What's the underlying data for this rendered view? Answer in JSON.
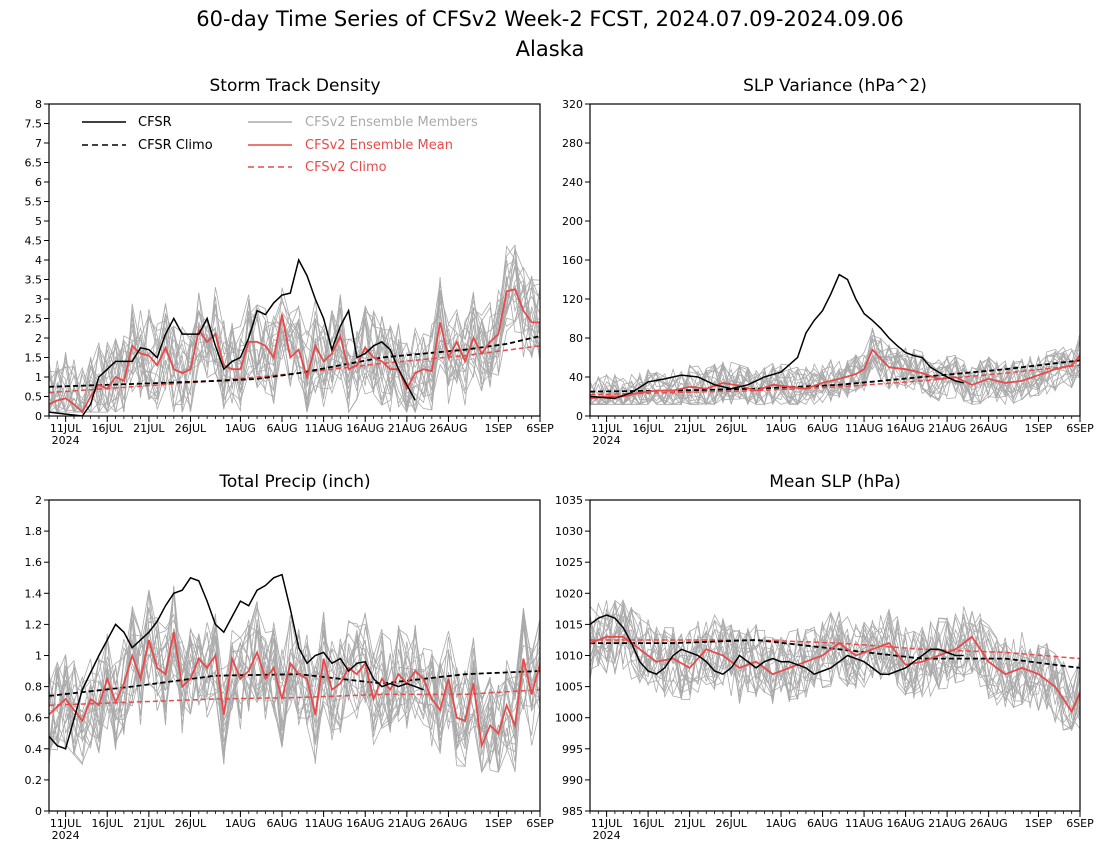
{
  "figure": {
    "title_line1": "60-day Time Series of CFSv2 Week-2 FCST, 2024.07.09-2024.09.06",
    "title_line2": "Alaska"
  },
  "colors": {
    "cfsr": "#000000",
    "cfsr_climo": "#000000",
    "members": "#aaaaaa",
    "ens_mean": "#e84a4a",
    "cfsv2_climo": "#e84a4a"
  },
  "legend": {
    "cfsr": "CFSR",
    "cfsr_climo": "CFSR Climo",
    "members": "CFSv2 Ensemble Members",
    "ens_mean": "CFSv2 Ensemble Mean",
    "cfsv2_climo": "CFSv2 Climo"
  },
  "x_axis": {
    "ticks": [
      "11JUL",
      "16JUL",
      "21JUL",
      "26JUL",
      "1AUG",
      "6AUG",
      "11AUG",
      "16AUG",
      "21AUG",
      "26AUG",
      "1SEP",
      "6SEP"
    ],
    "year_label": "2024"
  },
  "chart_data": [
    {
      "id": "storm",
      "type": "line",
      "title": "Storm Track Density",
      "ylim": [
        0,
        8
      ],
      "yticks": [
        "0",
        "0.5",
        "1",
        "1.5",
        "2",
        "2.5",
        "3",
        "3.5",
        "4",
        "4.5",
        "5",
        "5.5",
        "6",
        "6.5",
        "7",
        "7.5",
        "8"
      ],
      "day_range": [
        0,
        59
      ],
      "member_band": {
        "low": 0.1,
        "high": 4.5,
        "count": 20
      },
      "series": [
        {
          "name": "CFSR",
          "style": "solid-black",
          "x": [
            0,
            2,
            4,
            5,
            6,
            8,
            10,
            11,
            12,
            13,
            14,
            15,
            16,
            17,
            18,
            19,
            20,
            21,
            22,
            23,
            24,
            25,
            26,
            27,
            28,
            29,
            30,
            31,
            32,
            33,
            34,
            35,
            36,
            37,
            38,
            39,
            40,
            41,
            42,
            43,
            44,
            45,
            46,
            47,
            48,
            49
          ],
          "y": [
            0.1,
            0.05,
            0,
            0.3,
            1.0,
            1.4,
            1.4,
            1.75,
            1.7,
            1.5,
            2.1,
            2.5,
            2.1,
            2.1,
            2.1,
            2.5,
            1.8,
            1.2,
            1.4,
            1.5,
            2.0,
            2.7,
            2.6,
            2.9,
            3.1,
            3.15,
            4.0,
            3.6,
            3.0,
            2.5,
            1.7,
            2.3,
            2.7,
            1.5,
            1.6,
            1.8,
            1.9,
            1.7,
            1.2,
            0.8,
            0.4,
            null,
            null,
            null,
            null,
            null
          ]
        },
        {
          "name": "CFSR Climo",
          "style": "dashed-black",
          "x": [
            0,
            10,
            20,
            25,
            30,
            35,
            40,
            45,
            50,
            55,
            59
          ],
          "y": [
            0.75,
            0.82,
            0.9,
            0.95,
            1.1,
            1.3,
            1.5,
            1.6,
            1.7,
            1.85,
            2.05
          ]
        },
        {
          "name": "CFSv2 Ensemble Mean",
          "style": "solid-red",
          "x": [
            0,
            1,
            2,
            3,
            4,
            5,
            6,
            7,
            8,
            9,
            10,
            11,
            12,
            13,
            14,
            15,
            16,
            17,
            18,
            19,
            20,
            21,
            22,
            23,
            24,
            25,
            26,
            27,
            28,
            29,
            30,
            31,
            32,
            33,
            34,
            35,
            36,
            37,
            38,
            39,
            40,
            41,
            42,
            43,
            44,
            45,
            46,
            47,
            48,
            49,
            50,
            51,
            52,
            53,
            54,
            55,
            56,
            57,
            58,
            59
          ],
          "y": [
            0.3,
            0.4,
            0.45,
            0.3,
            0.1,
            0.5,
            0.8,
            0.7,
            1.0,
            0.9,
            1.8,
            1.6,
            1.55,
            1.3,
            1.75,
            1.2,
            1.1,
            1.2,
            2.2,
            1.9,
            2.1,
            1.3,
            1.2,
            1.2,
            1.9,
            1.9,
            1.8,
            1.5,
            2.6,
            1.5,
            1.7,
            1.0,
            1.8,
            1.4,
            1.6,
            2.05,
            1.2,
            1.3,
            1.75,
            1.5,
            1.4,
            1.2,
            1.2,
            0.7,
            1.1,
            1.2,
            1.15,
            2.4,
            1.5,
            1.9,
            1.4,
            2.0,
            1.6,
            1.9,
            2.1,
            3.2,
            3.25,
            2.7,
            2.4,
            2.4
          ]
        },
        {
          "name": "CFSv2 Climo",
          "style": "dashed-red",
          "x": [
            0,
            10,
            20,
            30,
            40,
            50,
            59
          ],
          "y": [
            0.6,
            0.75,
            0.9,
            1.1,
            1.35,
            1.55,
            1.8
          ]
        }
      ]
    },
    {
      "id": "slpvar",
      "type": "line",
      "title": "SLP Variance (hPa^2)",
      "ylim": [
        0,
        320
      ],
      "yticks": [
        "0",
        "40",
        "80",
        "120",
        "160",
        "200",
        "240",
        "280",
        "320"
      ],
      "day_range": [
        0,
        59
      ],
      "member_band": {
        "low": 12,
        "high": 95,
        "count": 20
      },
      "series": [
        {
          "name": "CFSR",
          "style": "solid-black",
          "x": [
            0,
            3,
            5,
            7,
            9,
            11,
            13,
            15,
            17,
            19,
            21,
            23,
            25,
            26,
            27,
            28,
            29,
            30,
            31,
            32,
            33,
            34,
            35,
            36,
            37,
            38,
            39,
            40,
            41,
            42,
            43,
            44,
            45
          ],
          "y": [
            20,
            18,
            24,
            35,
            38,
            42,
            40,
            32,
            28,
            32,
            40,
            45,
            60,
            85,
            98,
            108,
            125,
            145,
            140,
            120,
            105,
            98,
            90,
            80,
            72,
            65,
            62,
            60,
            50,
            45,
            40,
            36,
            34
          ]
        },
        {
          "name": "CFSR Climo",
          "style": "dashed-black",
          "x": [
            0,
            10,
            20,
            30,
            40,
            50,
            59
          ],
          "y": [
            25,
            26,
            28,
            32,
            40,
            48,
            57
          ]
        },
        {
          "name": "CFSv2 Ensemble Mean",
          "style": "solid-red",
          "x": [
            0,
            2,
            4,
            6,
            8,
            10,
            12,
            14,
            16,
            18,
            20,
            22,
            24,
            26,
            28,
            30,
            32,
            33,
            34,
            36,
            38,
            40,
            42,
            44,
            46,
            48,
            50,
            52,
            54,
            56,
            58,
            59
          ],
          "y": [
            18,
            20,
            20,
            24,
            26,
            26,
            30,
            28,
            34,
            31,
            26,
            32,
            30,
            28,
            34,
            38,
            43,
            48,
            68,
            50,
            48,
            44,
            38,
            40,
            32,
            38,
            34,
            36,
            42,
            48,
            52,
            62
          ]
        },
        {
          "name": "CFSv2 Climo",
          "style": "dashed-red",
          "x": [
            0,
            10,
            20,
            30,
            40,
            50,
            59
          ],
          "y": [
            22,
            24,
            26,
            30,
            36,
            44,
            52
          ]
        }
      ]
    },
    {
      "id": "precip",
      "type": "line",
      "title": "Total Precip (inch)",
      "ylim": [
        0,
        2
      ],
      "yticks": [
        "0",
        "0.2",
        "0.4",
        "0.6",
        "0.8",
        "1",
        "1.2",
        "1.4",
        "1.6",
        "1.8",
        "2"
      ],
      "day_range": [
        0,
        59
      ],
      "member_band": {
        "low": 0.25,
        "high": 1.45,
        "count": 20
      },
      "series": [
        {
          "name": "CFSR",
          "style": "solid-black",
          "x": [
            0,
            1,
            2,
            4,
            6,
            8,
            9,
            10,
            11,
            12,
            13,
            14,
            15,
            16,
            17,
            18,
            19,
            20,
            21,
            22,
            23,
            24,
            25,
            26,
            27,
            28,
            29,
            30,
            31,
            32,
            33,
            34,
            35,
            36,
            37,
            38,
            39,
            40,
            41,
            42,
            43,
            44,
            45
          ],
          "y": [
            0.48,
            0.42,
            0.4,
            0.78,
            1.0,
            1.2,
            1.15,
            1.05,
            1.1,
            1.15,
            1.22,
            1.32,
            1.4,
            1.42,
            1.5,
            1.48,
            1.35,
            1.2,
            1.15,
            1.25,
            1.35,
            1.32,
            1.42,
            1.45,
            1.5,
            1.52,
            1.3,
            1.05,
            0.95,
            1.0,
            1.02,
            0.95,
            0.98,
            0.9,
            0.95,
            0.96,
            0.85,
            0.8,
            0.82,
            0.8,
            0.82,
            0.8,
            0.78
          ]
        },
        {
          "name": "CFSR Climo",
          "style": "dashed-black",
          "x": [
            0,
            10,
            20,
            30,
            40,
            50,
            59
          ],
          "y": [
            0.74,
            0.8,
            0.87,
            0.88,
            0.82,
            0.88,
            0.9
          ]
        },
        {
          "name": "CFSv2 Ensemble Mean",
          "style": "solid-red",
          "x": [
            0,
            2,
            3,
            4,
            5,
            6,
            7,
            8,
            9,
            10,
            11,
            12,
            13,
            14,
            15,
            16,
            17,
            18,
            19,
            20,
            21,
            22,
            23,
            24,
            25,
            26,
            27,
            28,
            29,
            30,
            31,
            32,
            33,
            34,
            35,
            36,
            37,
            38,
            39,
            40,
            41,
            42,
            43,
            44,
            45,
            46,
            47,
            48,
            49,
            50,
            51,
            52,
            53,
            54,
            55,
            56,
            57,
            58,
            59
          ],
          "y": [
            0.62,
            0.72,
            0.65,
            0.58,
            0.72,
            0.68,
            0.85,
            0.7,
            0.82,
            1.0,
            0.85,
            1.1,
            0.92,
            0.88,
            1.15,
            0.8,
            0.85,
            0.98,
            0.92,
            1.0,
            0.62,
            0.98,
            0.85,
            0.9,
            1.02,
            0.85,
            0.92,
            0.72,
            0.95,
            0.88,
            0.85,
            0.62,
            0.98,
            0.78,
            0.82,
            0.92,
            0.88,
            0.95,
            0.72,
            0.85,
            0.78,
            0.88,
            0.82,
            0.9,
            0.85,
            0.72,
            0.65,
            0.85,
            0.6,
            0.58,
            0.82,
            0.42,
            0.55,
            0.5,
            0.68,
            0.55,
            0.98,
            0.75,
            0.95
          ]
        },
        {
          "name": "CFSv2 Climo",
          "style": "dashed-red",
          "x": [
            0,
            10,
            20,
            30,
            40,
            50,
            59
          ],
          "y": [
            0.68,
            0.7,
            0.72,
            0.73,
            0.75,
            0.75,
            0.78
          ]
        }
      ]
    },
    {
      "id": "mslp",
      "type": "line",
      "title": "Mean SLP (hPa)",
      "ylim": [
        985,
        1035
      ],
      "yticks": [
        "985",
        "990",
        "995",
        "1000",
        "1005",
        "1010",
        "1015",
        "1020",
        "1025",
        "1030",
        "1035"
      ],
      "day_range": [
        0,
        59
      ],
      "member_band": {
        "low": 998,
        "high": 1020,
        "count": 20
      },
      "series": [
        {
          "name": "CFSR",
          "style": "solid-black",
          "x": [
            0,
            1,
            2,
            3,
            4,
            5,
            6,
            7,
            8,
            9,
            10,
            11,
            12,
            13,
            14,
            15,
            16,
            17,
            18,
            19,
            20,
            21,
            22,
            23,
            24,
            25,
            26,
            27,
            28,
            29,
            30,
            31,
            32,
            33,
            34,
            35,
            36,
            37,
            38,
            39,
            40,
            41,
            42,
            43,
            44,
            45
          ],
          "y": [
            1015,
            1016,
            1016.5,
            1016,
            1014.5,
            1012,
            1009,
            1007.5,
            1007,
            1008,
            1010,
            1011,
            1010.5,
            1010,
            1009,
            1007.5,
            1007,
            1008,
            1010,
            1009,
            1008,
            1009,
            1009.5,
            1009,
            1009,
            1008.5,
            1008,
            1007,
            1007.5,
            1008,
            1009,
            1010,
            1009.5,
            1009,
            1008,
            1007,
            1007,
            1007.5,
            1008,
            1009,
            1010,
            1011,
            1011,
            1010.5,
            1010,
            1010
          ]
        },
        {
          "name": "CFSR Climo",
          "style": "dashed-black",
          "x": [
            0,
            10,
            20,
            30,
            40,
            50,
            59
          ],
          "y": [
            1012,
            1012,
            1012.5,
            1011,
            1009.5,
            1009.5,
            1008
          ]
        },
        {
          "name": "CFSv2 Ensemble Mean",
          "style": "solid-red",
          "x": [
            0,
            2,
            4,
            6,
            8,
            10,
            12,
            14,
            16,
            18,
            20,
            22,
            24,
            26,
            28,
            30,
            32,
            34,
            36,
            38,
            40,
            42,
            44,
            46,
            48,
            50,
            52,
            54,
            56,
            58,
            59
          ],
          "y": [
            1012,
            1013,
            1013,
            1011,
            1009,
            1009.5,
            1008,
            1011,
            1010,
            1008,
            1009,
            1007,
            1008,
            1009,
            1010,
            1012,
            1010,
            1011,
            1012,
            1008.5,
            1009,
            1010,
            1011,
            1013,
            1009,
            1007,
            1008,
            1007,
            1005,
            1001,
            1004
          ]
        },
        {
          "name": "CFSv2 Climo",
          "style": "dashed-red",
          "x": [
            0,
            10,
            20,
            30,
            40,
            50,
            59
          ],
          "y": [
            1012.5,
            1012.5,
            1012.5,
            1012,
            1011,
            1010.5,
            1009.5
          ]
        }
      ]
    }
  ]
}
